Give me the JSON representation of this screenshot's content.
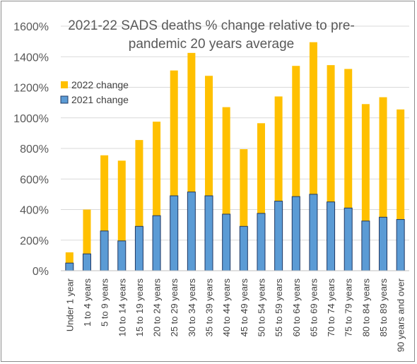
{
  "chart_data": {
    "type": "bar",
    "stacked": true,
    "title": "2021-22 SADS deaths % change relative to pre-pandemic 20 years average",
    "title_lines": [
      "2021-22 SADS deaths % change relative to pre-",
      "pandemic 20 years average"
    ],
    "categories": [
      "Under 1 year",
      "1 to 4 years",
      "5 to 9 years",
      "10 to 14 years",
      "15 to 19 years",
      "20 to 24 years",
      "25 to 29 years",
      "30 to 34 years",
      "35 to 39 years",
      "40 to 44 years",
      "45 to 49 years",
      "50 to 54 years",
      "55 to 59 years",
      "60 to 64 years",
      "65 to 69 years",
      "70 to 74 years",
      "75 to 79 years",
      "80 to 84 years",
      "85 to 89 years",
      "90 years and over"
    ],
    "series": [
      {
        "name": "2021 change",
        "color": "#5b9bd5",
        "values": [
          50,
          110,
          260,
          195,
          290,
          360,
          490,
          515,
          490,
          370,
          290,
          375,
          455,
          485,
          500,
          450,
          410,
          325,
          350,
          335
        ]
      },
      {
        "name": "2022 change",
        "color": "#ffc000",
        "values": [
          70,
          290,
          495,
          525,
          565,
          615,
          820,
          910,
          785,
          700,
          505,
          590,
          685,
          855,
          995,
          895,
          910,
          765,
          785,
          720
        ]
      }
    ],
    "ylim": [
      0,
      1600
    ],
    "yticks": [
      "0%",
      "200%",
      "400%",
      "600%",
      "800%",
      "1000%",
      "1200%",
      "1400%",
      "1600%"
    ],
    "ytick_values": [
      0,
      200,
      400,
      600,
      800,
      1000,
      1200,
      1400,
      1600
    ],
    "ylabel": "",
    "xlabel": "",
    "grid": true,
    "legend_position": "top-left",
    "legend": [
      {
        "name": "2022 change",
        "color": "#ffc000"
      },
      {
        "name": "2021 change",
        "color": "#5b9bd5"
      }
    ]
  }
}
